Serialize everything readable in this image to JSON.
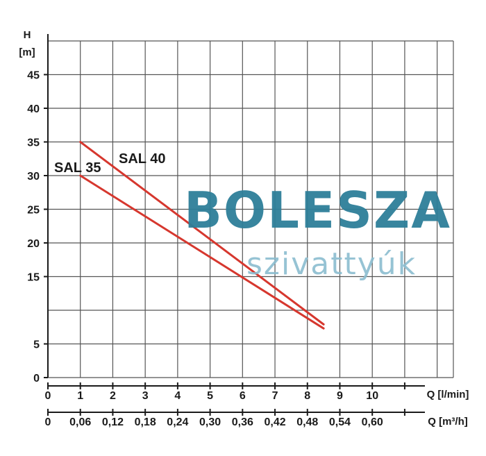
{
  "chart_data": {
    "type": "line",
    "y_axis": {
      "label_top": "H",
      "label_unit": "[m]",
      "ticks": [
        "0",
        "5",
        "15",
        "20",
        "25",
        "30",
        "35",
        "40",
        "45"
      ],
      "tick_values": [
        0,
        5,
        15,
        20,
        25,
        30,
        35,
        40,
        45
      ],
      "range": [
        0,
        50
      ],
      "grid_step": 5
    },
    "x_axis_primary": {
      "label": "Q [l/min]",
      "ticks": [
        "0",
        "1",
        "2",
        "3",
        "4",
        "5",
        "6",
        "7",
        "8",
        "9",
        "10"
      ],
      "tick_values": [
        0,
        1,
        2,
        3,
        4,
        5,
        6,
        7,
        8,
        9,
        10
      ],
      "range": [
        0,
        12.5
      ]
    },
    "x_axis_secondary": {
      "label": "Q [m³/h]",
      "ticks": [
        "0",
        "0,06",
        "0,12",
        "0,18",
        "0,24",
        "0,30",
        "0,36",
        "0,42",
        "0,48",
        "0,54",
        "0,60"
      ],
      "tick_positions_lmin": [
        0,
        1,
        2,
        3,
        4,
        5,
        6,
        7,
        8,
        9,
        10
      ]
    },
    "grid": true,
    "series": [
      {
        "name": "SAL 35",
        "color": "#d6372e",
        "x": [
          1,
          8.5
        ],
        "y": [
          30,
          7.3
        ]
      },
      {
        "name": "SAL 40",
        "color": "#d6372e",
        "x": [
          1,
          8.5
        ],
        "y": [
          35,
          7.9
        ]
      }
    ]
  },
  "watermark": {
    "title": "BOLESZA",
    "subtitle": "szivattyúk",
    "title_color": "#2e7f99",
    "subtitle_color": "#8bbdd0"
  }
}
